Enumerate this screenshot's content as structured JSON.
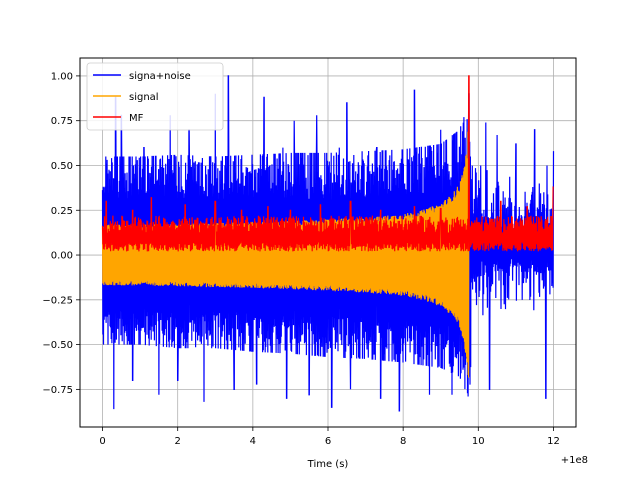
{
  "chart_data": {
    "type": "line",
    "title": "",
    "xlabel": "Time (s)",
    "ylabel": "",
    "x_offset_label": "+1e8",
    "xlim": [
      -0.6,
      12.6
    ],
    "ylim": [
      -0.96,
      1.1
    ],
    "x_ticks": [
      0,
      2,
      4,
      6,
      8,
      10,
      12
    ],
    "y_ticks": [
      -0.75,
      -0.5,
      -0.25,
      0.0,
      0.25,
      0.5,
      0.75,
      1.0
    ],
    "x_tick_labels": [
      "0",
      "2",
      "4",
      "6",
      "8",
      "10",
      "12"
    ],
    "y_tick_labels": [
      "−0.75",
      "−0.50",
      "−0.25",
      "0.00",
      "0.25",
      "0.50",
      "0.75",
      "1.00"
    ],
    "grid": true,
    "legend_position": "top-left",
    "series": [
      {
        "name": "signa+noise",
        "color": "#0000ff",
        "description_values": {
          "x_start": 0,
          "x_end": 12,
          "envelope_upper": [
            [
              0,
              0.55
            ],
            [
              1,
              0.55
            ],
            [
              2,
              0.56
            ],
            [
              3,
              0.55
            ],
            [
              4,
              0.56
            ],
            [
              5,
              0.57
            ],
            [
              6,
              0.57
            ],
            [
              7,
              0.58
            ],
            [
              8,
              0.59
            ],
            [
              9,
              0.62
            ],
            [
              9.5,
              0.7
            ],
            [
              9.75,
              0.85
            ],
            [
              10,
              0.5
            ],
            [
              11,
              0.5
            ],
            [
              12,
              0.5
            ]
          ],
          "envelope_lower": [
            [
              0,
              -0.5
            ],
            [
              1,
              -0.5
            ],
            [
              2,
              -0.52
            ],
            [
              3,
              -0.52
            ],
            [
              4,
              -0.54
            ],
            [
              5,
              -0.55
            ],
            [
              6,
              -0.57
            ],
            [
              7,
              -0.58
            ],
            [
              8,
              -0.6
            ],
            [
              9,
              -0.63
            ],
            [
              9.5,
              -0.68
            ],
            [
              9.75,
              -0.8
            ],
            [
              10,
              -0.45
            ],
            [
              11,
              -0.45
            ],
            [
              12,
              -0.45
            ]
          ],
          "peaks": [
            [
              0.35,
              0.88
            ],
            [
              0.5,
              0.78
            ],
            [
              1.1,
              0.6
            ],
            [
              1.8,
              0.78
            ],
            [
              2.3,
              0.7
            ],
            [
              3.0,
              0.9
            ],
            [
              3.35,
              1.0
            ],
            [
              4.3,
              0.88
            ],
            [
              4.8,
              0.6
            ],
            [
              5.1,
              0.75
            ],
            [
              5.7,
              0.78
            ],
            [
              6.3,
              0.6
            ],
            [
              6.5,
              0.85
            ],
            [
              7.3,
              0.6
            ],
            [
              8.3,
              0.92
            ],
            [
              9.0,
              0.7
            ],
            [
              9.75,
              0.9
            ],
            [
              10.2,
              0.74
            ],
            [
              10.5,
              0.67
            ],
            [
              11.0,
              0.62
            ],
            [
              11.5,
              0.7
            ],
            [
              12.0,
              0.58
            ]
          ],
          "troughs": [
            [
              0.3,
              -0.86
            ],
            [
              0.8,
              -0.7
            ],
            [
              1.5,
              -0.78
            ],
            [
              2.0,
              -0.7
            ],
            [
              2.7,
              -0.82
            ],
            [
              3.5,
              -0.75
            ],
            [
              4.1,
              -0.72
            ],
            [
              4.9,
              -0.8
            ],
            [
              5.5,
              -0.78
            ],
            [
              6.1,
              -0.85
            ],
            [
              6.6,
              -0.75
            ],
            [
              7.4,
              -0.8
            ],
            [
              7.9,
              -0.87
            ],
            [
              8.7,
              -0.78
            ],
            [
              9.3,
              -0.78
            ],
            [
              10.3,
              -0.75
            ],
            [
              11.0,
              -0.8
            ],
            [
              11.8,
              -0.8
            ]
          ]
        }
      },
      {
        "name": "signal",
        "color": "#ffa500",
        "description_values": {
          "x_start": 0,
          "x_end": 9.75,
          "amplitude": [
            [
              0,
              0.17
            ],
            [
              1,
              0.17
            ],
            [
              2,
              0.175
            ],
            [
              3,
              0.18
            ],
            [
              4,
              0.185
            ],
            [
              5,
              0.19
            ],
            [
              6,
              0.2
            ],
            [
              7,
              0.21
            ],
            [
              8,
              0.23
            ],
            [
              8.5,
              0.25
            ],
            [
              9,
              0.29
            ],
            [
              9.3,
              0.34
            ],
            [
              9.5,
              0.4
            ],
            [
              9.6,
              0.48
            ],
            [
              9.7,
              0.6
            ],
            [
              9.75,
              0.8
            ]
          ]
        }
      },
      {
        "name": "MF",
        "color": "#ff0000",
        "description_values": {
          "x_start": 0,
          "x_end": 12,
          "band": [
            0.02,
            0.22
          ],
          "peaks": [
            [
              0.1,
              0.3
            ],
            [
              0.8,
              0.25
            ],
            [
              1.3,
              0.32
            ],
            [
              2.2,
              0.28
            ],
            [
              3.0,
              0.3
            ],
            [
              3.7,
              0.25
            ],
            [
              4.4,
              0.27
            ],
            [
              5.0,
              0.25
            ],
            [
              5.8,
              0.28
            ],
            [
              6.6,
              0.3
            ],
            [
              7.4,
              0.25
            ],
            [
              8.3,
              0.27
            ],
            [
              9.0,
              0.26
            ],
            [
              9.75,
              1.0
            ],
            [
              10.6,
              0.3
            ],
            [
              11.3,
              0.27
            ],
            [
              12.0,
              0.38
            ]
          ]
        }
      }
    ]
  }
}
